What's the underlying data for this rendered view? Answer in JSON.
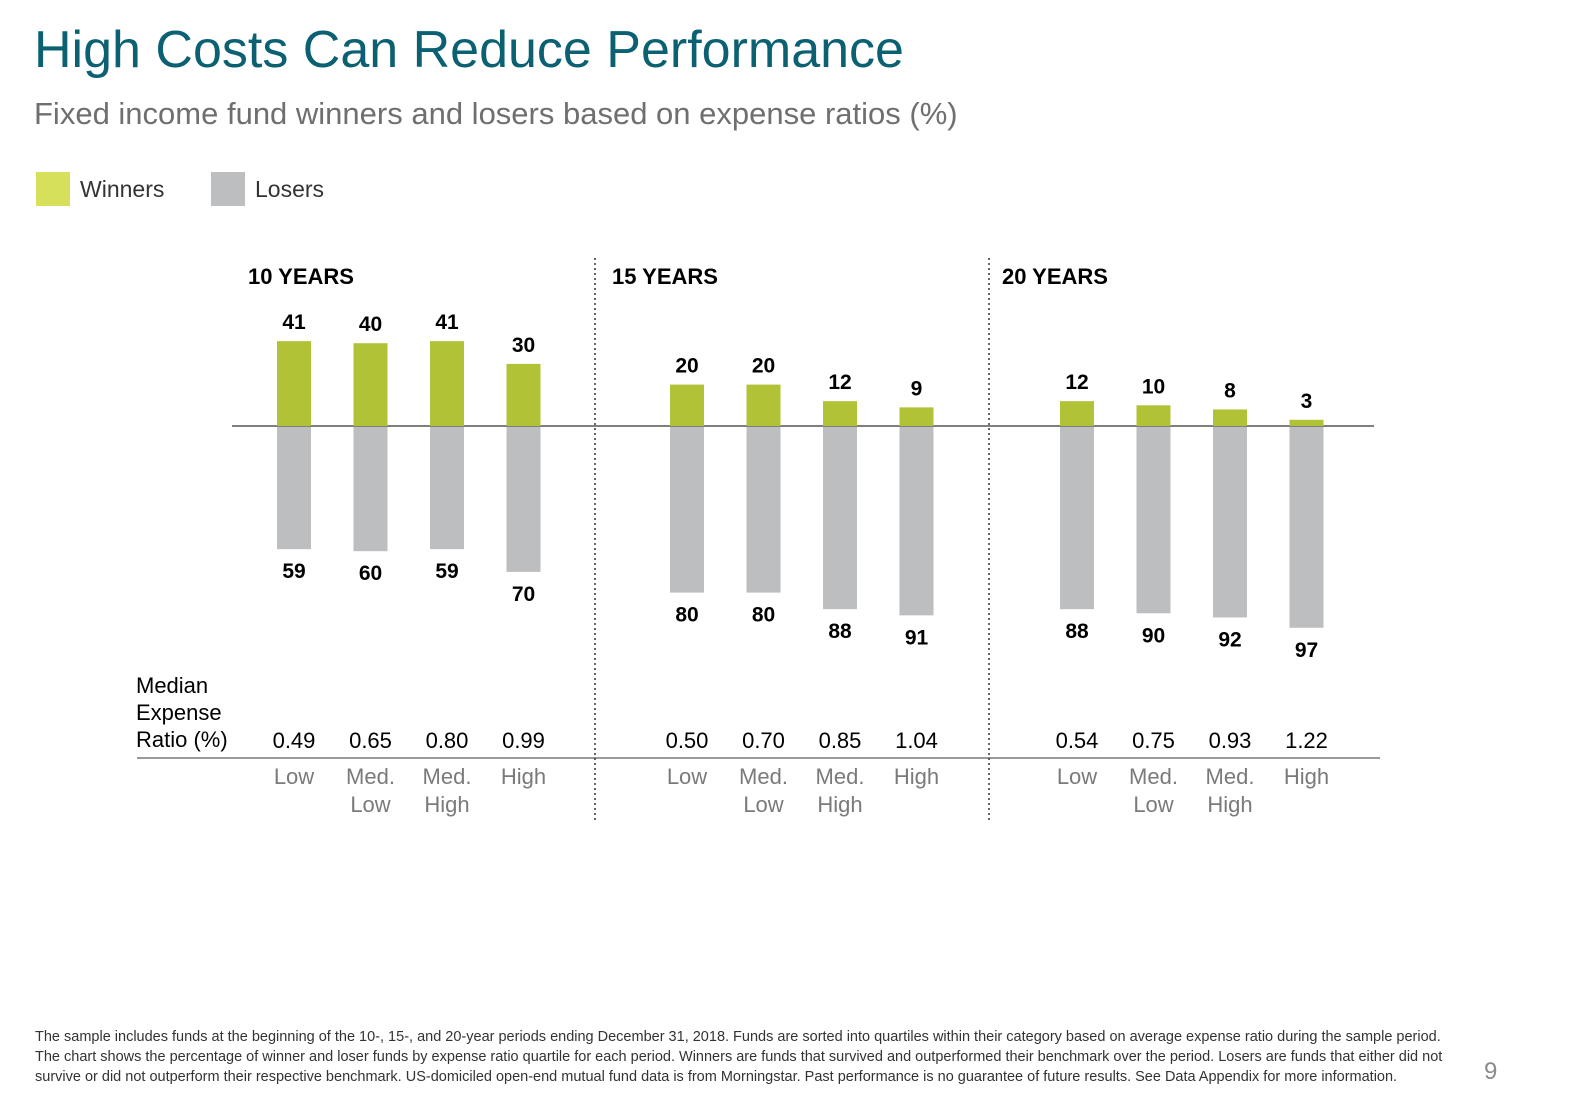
{
  "title": "High Costs Can Reduce Performance",
  "subtitle": "Fixed income fund winners and losers based on expense ratios (%)",
  "legend": [
    {
      "label": "Winners",
      "color": "#d6e05a"
    },
    {
      "label": "Losers",
      "color": "#bdbec0"
    }
  ],
  "colors": {
    "title": "#0b6172",
    "winners_bar": "#b2c237",
    "losers_bar": "#bdbec0",
    "axis": "#555555"
  },
  "chart_data": {
    "type": "bar",
    "row_label": "Median\nExpense\nRatio (%)",
    "panels": [
      {
        "title": "10 YEARS",
        "categories": [
          "Low",
          "Med.\nLow",
          "Med.\nHigh",
          "High"
        ],
        "median_expense_ratio": [
          "0.49",
          "0.65",
          "0.80",
          "0.99"
        ],
        "series": [
          {
            "name": "Winners",
            "values": [
              41,
              40,
              41,
              30
            ]
          },
          {
            "name": "Losers",
            "values": [
              59,
              60,
              59,
              70
            ]
          }
        ]
      },
      {
        "title": "15 YEARS",
        "categories": [
          "Low",
          "Med.\nLow",
          "Med.\nHigh",
          "High"
        ],
        "median_expense_ratio": [
          "0.50",
          "0.70",
          "0.85",
          "1.04"
        ],
        "series": [
          {
            "name": "Winners",
            "values": [
              20,
              20,
              12,
              9
            ]
          },
          {
            "name": "Losers",
            "values": [
              80,
              80,
              88,
              91
            ]
          }
        ]
      },
      {
        "title": "20 YEARS",
        "categories": [
          "Low",
          "Med.\nLow",
          "Med.\nHigh",
          "High"
        ],
        "median_expense_ratio": [
          "0.54",
          "0.75",
          "0.93",
          "1.22"
        ],
        "series": [
          {
            "name": "Winners",
            "values": [
              12,
              10,
              8,
              3
            ]
          },
          {
            "name": "Losers",
            "values": [
              88,
              90,
              92,
              97
            ]
          }
        ]
      }
    ],
    "grid": false,
    "legend_position": "top-left"
  },
  "footnote": "The sample includes funds at the beginning of the 10-, 15-, and 20-year periods ending December 31, 2018. Funds are sorted into quartiles within their category based on average expense ratio during the sample period. The chart shows the percentage of winner and loser funds by expense ratio quartile for each period. Winners are funds that survived and outperformed their benchmark over the period. Losers are funds that either did not survive or did not outperform their respective benchmark. US-domiciled open-end mutual fund data is from Morningstar. Past performance is no guarantee of future results. See Data Appendix for more information.",
  "page_number": "9"
}
